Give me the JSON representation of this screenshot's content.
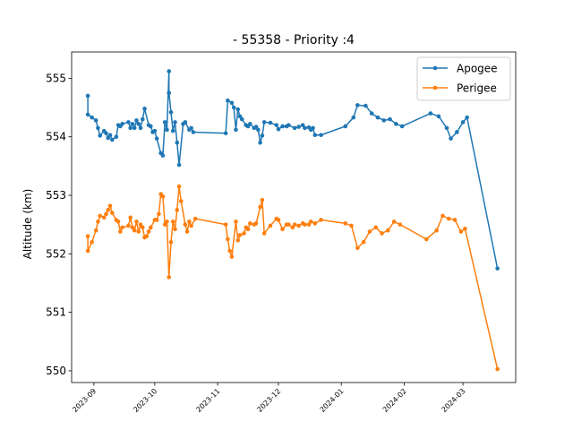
{
  "chart_data": {
    "type": "line",
    "title": "- 55358 - Priority :4",
    "xlabel": "",
    "ylabel": "Altitude (km)",
    "x_type": "date",
    "xlim": [
      "2023-08-21",
      "2024-03-27"
    ],
    "ylim": [
      549.8,
      555.45
    ],
    "yticks": [
      550,
      551,
      552,
      553,
      554,
      555
    ],
    "xticks": [
      "2023-09",
      "2023-10",
      "2023-11",
      "2023-12",
      "2024-01",
      "2024-02",
      "2024-03"
    ],
    "legend_position": "top-right",
    "grid": false,
    "series": [
      {
        "name": "Apogee",
        "color": "#1f77b4",
        "marker": "circle",
        "points": [
          [
            "2023-08-29",
            554.7
          ],
          [
            "2023-08-29",
            554.38
          ],
          [
            "2023-08-31",
            554.33
          ],
          [
            "2023-09-02",
            554.28
          ],
          [
            "2023-09-03",
            554.15
          ],
          [
            "2023-09-04",
            554.02
          ],
          [
            "2023-09-06",
            554.1
          ],
          [
            "2023-09-07",
            554.06
          ],
          [
            "2023-09-08",
            553.98
          ],
          [
            "2023-09-09",
            554.03
          ],
          [
            "2023-09-10",
            553.95
          ],
          [
            "2023-09-12",
            554.0
          ],
          [
            "2023-09-13",
            554.2
          ],
          [
            "2023-09-14",
            554.18
          ],
          [
            "2023-09-15",
            554.22
          ],
          [
            "2023-09-18",
            554.25
          ],
          [
            "2023-09-19",
            554.15
          ],
          [
            "2023-09-20",
            554.22
          ],
          [
            "2023-09-21",
            554.15
          ],
          [
            "2023-09-22",
            554.28
          ],
          [
            "2023-09-23",
            554.22
          ],
          [
            "2023-09-24",
            554.15
          ],
          [
            "2023-09-25",
            554.3
          ],
          [
            "2023-09-26",
            554.48
          ],
          [
            "2023-09-28",
            554.2
          ],
          [
            "2023-09-29",
            554.18
          ],
          [
            "2023-09-30",
            554.08
          ],
          [
            "2023-10-01",
            554.1
          ],
          [
            "2023-10-02",
            553.97
          ],
          [
            "2023-10-04",
            553.72
          ],
          [
            "2023-10-05",
            553.68
          ],
          [
            "2023-10-06",
            554.25
          ],
          [
            "2023-10-07",
            554.12
          ],
          [
            "2023-10-08",
            555.12
          ],
          [
            "2023-10-08",
            554.75
          ],
          [
            "2023-10-09",
            554.42
          ],
          [
            "2023-10-10",
            554.1
          ],
          [
            "2023-10-11",
            554.25
          ],
          [
            "2023-10-12",
            553.9
          ],
          [
            "2023-10-13",
            553.52
          ],
          [
            "2023-10-15",
            554.22
          ],
          [
            "2023-10-16",
            554.25
          ],
          [
            "2023-10-18",
            554.12
          ],
          [
            "2023-10-19",
            554.15
          ],
          [
            "2023-10-20",
            554.08
          ],
          [
            "2023-11-05",
            554.06
          ],
          [
            "2023-11-06",
            554.62
          ],
          [
            "2023-11-08",
            554.58
          ],
          [
            "2023-11-09",
            554.5
          ],
          [
            "2023-11-10",
            554.12
          ],
          [
            "2023-11-11",
            554.47
          ],
          [
            "2023-11-12",
            554.35
          ],
          [
            "2023-11-13",
            554.3
          ],
          [
            "2023-11-15",
            554.2
          ],
          [
            "2023-11-16",
            554.18
          ],
          [
            "2023-11-17",
            554.22
          ],
          [
            "2023-11-19",
            554.15
          ],
          [
            "2023-11-20",
            554.17
          ],
          [
            "2023-11-21",
            554.12
          ],
          [
            "2023-11-22",
            553.9
          ],
          [
            "2023-11-23",
            554.02
          ],
          [
            "2023-11-24",
            554.25
          ],
          [
            "2023-11-27",
            554.24
          ],
          [
            "2023-11-30",
            554.2
          ],
          [
            "2023-12-01",
            554.13
          ],
          [
            "2023-12-03",
            554.18
          ],
          [
            "2023-12-05",
            554.18
          ],
          [
            "2023-12-06",
            554.2
          ],
          [
            "2023-12-09",
            554.15
          ],
          [
            "2023-12-11",
            554.17
          ],
          [
            "2023-12-13",
            554.2
          ],
          [
            "2023-12-14",
            554.15
          ],
          [
            "2023-12-16",
            554.16
          ],
          [
            "2023-12-17",
            554.12
          ],
          [
            "2023-12-18",
            554.15
          ],
          [
            "2023-12-19",
            554.03
          ],
          [
            "2023-12-22",
            554.03
          ],
          [
            "2024-01-03",
            554.18
          ],
          [
            "2024-01-07",
            554.33
          ],
          [
            "2024-01-09",
            554.54
          ],
          [
            "2024-01-13",
            554.53
          ],
          [
            "2024-01-16",
            554.4
          ],
          [
            "2024-01-19",
            554.33
          ],
          [
            "2024-01-22",
            554.28
          ],
          [
            "2024-01-25",
            554.3
          ],
          [
            "2024-01-28",
            554.22
          ],
          [
            "2024-01-31",
            554.18
          ],
          [
            "2024-02-14",
            554.4
          ],
          [
            "2024-02-18",
            554.35
          ],
          [
            "2024-02-22",
            554.15
          ],
          [
            "2024-02-24",
            553.97
          ],
          [
            "2024-02-27",
            554.08
          ],
          [
            "2024-03-01",
            554.25
          ],
          [
            "2024-03-03",
            554.33
          ],
          [
            "2024-03-18",
            551.75
          ]
        ]
      },
      {
        "name": "Perigee",
        "color": "#ff7f0e",
        "marker": "circle",
        "points": [
          [
            "2023-08-29",
            552.3
          ],
          [
            "2023-08-29",
            552.05
          ],
          [
            "2023-08-31",
            552.2
          ],
          [
            "2023-09-02",
            552.4
          ],
          [
            "2023-09-03",
            552.55
          ],
          [
            "2023-09-04",
            552.65
          ],
          [
            "2023-09-06",
            552.62
          ],
          [
            "2023-09-07",
            552.68
          ],
          [
            "2023-09-08",
            552.75
          ],
          [
            "2023-09-09",
            552.82
          ],
          [
            "2023-09-10",
            552.7
          ],
          [
            "2023-09-12",
            552.58
          ],
          [
            "2023-09-13",
            552.55
          ],
          [
            "2023-09-14",
            552.38
          ],
          [
            "2023-09-15",
            552.45
          ],
          [
            "2023-09-18",
            552.48
          ],
          [
            "2023-09-19",
            552.62
          ],
          [
            "2023-09-20",
            552.45
          ],
          [
            "2023-09-21",
            552.4
          ],
          [
            "2023-09-22",
            552.55
          ],
          [
            "2023-09-23",
            552.38
          ],
          [
            "2023-09-24",
            552.5
          ],
          [
            "2023-09-25",
            552.45
          ],
          [
            "2023-09-26",
            552.28
          ],
          [
            "2023-09-27",
            552.3
          ],
          [
            "2023-09-28",
            552.38
          ],
          [
            "2023-09-29",
            552.45
          ],
          [
            "2023-10-01",
            552.58
          ],
          [
            "2023-10-02",
            552.58
          ],
          [
            "2023-10-03",
            552.68
          ],
          [
            "2023-10-04",
            553.02
          ],
          [
            "2023-10-05",
            552.98
          ],
          [
            "2023-10-06",
            552.5
          ],
          [
            "2023-10-07",
            552.55
          ],
          [
            "2023-10-08",
            551.6
          ],
          [
            "2023-10-09",
            552.2
          ],
          [
            "2023-10-10",
            552.55
          ],
          [
            "2023-10-11",
            552.42
          ],
          [
            "2023-10-12",
            552.75
          ],
          [
            "2023-10-13",
            553.15
          ],
          [
            "2023-10-14",
            552.9
          ],
          [
            "2023-10-16",
            552.5
          ],
          [
            "2023-10-17",
            552.38
          ],
          [
            "2023-10-18",
            552.55
          ],
          [
            "2023-10-19",
            552.48
          ],
          [
            "2023-10-21",
            552.6
          ],
          [
            "2023-11-05",
            552.5
          ],
          [
            "2023-11-06",
            552.25
          ],
          [
            "2023-11-07",
            552.05
          ],
          [
            "2023-11-08",
            551.95
          ],
          [
            "2023-11-10",
            552.55
          ],
          [
            "2023-11-11",
            552.23
          ],
          [
            "2023-11-12",
            552.32
          ],
          [
            "2023-11-14",
            552.35
          ],
          [
            "2023-11-15",
            552.45
          ],
          [
            "2023-11-16",
            552.42
          ],
          [
            "2023-11-17",
            552.52
          ],
          [
            "2023-11-19",
            552.5
          ],
          [
            "2023-11-20",
            552.52
          ],
          [
            "2023-11-22",
            552.8
          ],
          [
            "2023-11-23",
            552.92
          ],
          [
            "2023-11-24",
            552.35
          ],
          [
            "2023-11-27",
            552.48
          ],
          [
            "2023-11-30",
            552.6
          ],
          [
            "2023-12-01",
            552.58
          ],
          [
            "2023-12-03",
            552.42
          ],
          [
            "2023-12-05",
            552.5
          ],
          [
            "2023-12-06",
            552.5
          ],
          [
            "2023-12-08",
            552.45
          ],
          [
            "2023-12-09",
            552.5
          ],
          [
            "2023-12-11",
            552.48
          ],
          [
            "2023-12-13",
            552.52
          ],
          [
            "2023-12-14",
            552.5
          ],
          [
            "2023-12-16",
            552.5
          ],
          [
            "2023-12-17",
            552.55
          ],
          [
            "2023-12-19",
            552.52
          ],
          [
            "2023-12-22",
            552.58
          ],
          [
            "2024-01-03",
            552.52
          ],
          [
            "2024-01-06",
            552.48
          ],
          [
            "2024-01-09",
            552.1
          ],
          [
            "2024-01-12",
            552.2
          ],
          [
            "2024-01-15",
            552.38
          ],
          [
            "2024-01-18",
            552.45
          ],
          [
            "2024-01-21",
            552.35
          ],
          [
            "2024-01-24",
            552.4
          ],
          [
            "2024-01-27",
            552.55
          ],
          [
            "2024-01-30",
            552.5
          ],
          [
            "2024-02-12",
            552.25
          ],
          [
            "2024-02-17",
            552.4
          ],
          [
            "2024-02-20",
            552.65
          ],
          [
            "2024-02-23",
            552.6
          ],
          [
            "2024-02-26",
            552.58
          ],
          [
            "2024-02-29",
            552.38
          ],
          [
            "2024-03-02",
            552.43
          ],
          [
            "2024-03-18",
            550.03
          ]
        ]
      }
    ]
  }
}
